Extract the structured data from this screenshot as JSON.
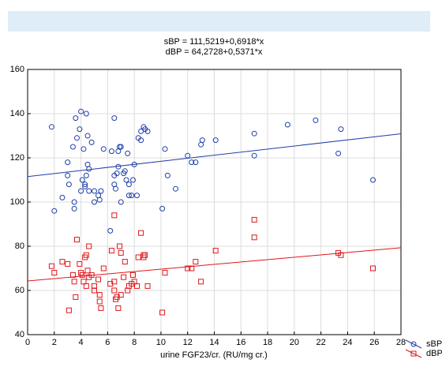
{
  "chart_data": {
    "type": "scatter",
    "title": "sBP = 111,5219+0,6918*x",
    "subtitle": "dBP = 64,2728+0,5371*x",
    "x_label": "urine FGF23/cr. (RU/mg cr.)",
    "xlim": [
      0,
      28
    ],
    "xticks": [
      0,
      2,
      4,
      6,
      8,
      10,
      12,
      14,
      16,
      18,
      20,
      22,
      24,
      26,
      28
    ],
    "ylim": [
      40,
      160
    ],
    "yticks": [
      40,
      60,
      80,
      100,
      120,
      140,
      160
    ],
    "grid": true,
    "legend": "bottom-right",
    "series": [
      {
        "name": "sBP",
        "color": "#1f3fa8",
        "marker": "circle",
        "fit": {
          "intercept": 111.5219,
          "slope": 0.6918
        },
        "x": [
          1.8,
          2,
          2.6,
          3,
          3,
          3.1,
          3.4,
          3.5,
          3.5,
          3.6,
          3.7,
          3.9,
          4,
          4.1,
          4.2,
          4,
          4.3,
          4.4,
          4.5,
          4.5,
          4.6,
          4.8,
          4.6,
          4.4,
          4.3,
          5,
          5,
          5.3,
          5.4,
          5.5,
          5.7,
          6.2,
          6.3,
          6.5,
          6.5,
          6.5,
          6.6,
          6.7,
          6.8,
          6.9,
          7,
          6.8,
          7.2,
          7.3,
          7.4,
          7.5,
          7.6,
          7.8,
          7.9,
          8,
          8.2,
          8.3,
          8.5,
          8.5,
          8.7,
          8.8,
          9,
          10.1,
          10.3,
          10.5,
          11.1,
          12,
          12.3,
          12.6,
          13,
          13.1,
          14.1,
          17,
          17,
          19.5,
          21.6,
          23.3,
          23.5,
          25.9,
          7.6,
          7
        ],
        "values": [
          134,
          96,
          102,
          112,
          118,
          108,
          125,
          100,
          97,
          138,
          129,
          133,
          141,
          110,
          124,
          105,
          108,
          140,
          130,
          117,
          115,
          127,
          105,
          112,
          107,
          105,
          100,
          103,
          101,
          105,
          124,
          87,
          123,
          138,
          112,
          108,
          106,
          113,
          123,
          125,
          125,
          116,
          113,
          114,
          110,
          122,
          108,
          103,
          110,
          117,
          103,
          129,
          132,
          128,
          134,
          133,
          132,
          97,
          124,
          112,
          106,
          121,
          118,
          118,
          126,
          128,
          128,
          121,
          131,
          135,
          137,
          122,
          133,
          110,
          103,
          100
        ]
      },
      {
        "name": "dBP",
        "color": "#e0161b",
        "marker": "square",
        "fit": {
          "intercept": 64.2728,
          "slope": 0.5371
        },
        "x": [
          1.8,
          2,
          2.6,
          3,
          3.1,
          3.4,
          3.5,
          3.6,
          3.7,
          3.9,
          4,
          4.1,
          4.2,
          4.3,
          4.4,
          4.4,
          4.5,
          4.6,
          4.6,
          4.8,
          5,
          5,
          5.3,
          5.4,
          5.4,
          5.5,
          5.7,
          6.2,
          6.3,
          6.5,
          6.5,
          6.6,
          6.7,
          6.8,
          6.9,
          7,
          7.2,
          7.3,
          7.5,
          7.6,
          7.8,
          7.9,
          8,
          8.2,
          8.3,
          8.5,
          8.7,
          8.8,
          9,
          10.1,
          10.3,
          12,
          12.3,
          12.6,
          13,
          14.1,
          17,
          17,
          23.3,
          23.5,
          25.9,
          7,
          6.5,
          8.7
        ],
        "values": [
          71,
          68,
          73,
          72,
          51,
          67,
          64,
          57,
          83,
          72,
          68,
          67,
          64,
          75,
          76,
          62,
          69,
          80,
          66,
          67,
          62,
          60,
          65,
          58,
          55,
          52,
          70,
          63,
          78,
          94,
          64,
          56,
          57,
          52,
          80,
          77,
          66,
          73,
          60,
          62,
          63,
          67,
          64,
          62,
          75,
          86,
          76,
          76,
          62,
          50,
          68,
          70,
          70,
          73,
          64,
          78,
          92,
          84,
          77,
          76,
          70,
          58,
          60,
          75
        ]
      }
    ]
  }
}
